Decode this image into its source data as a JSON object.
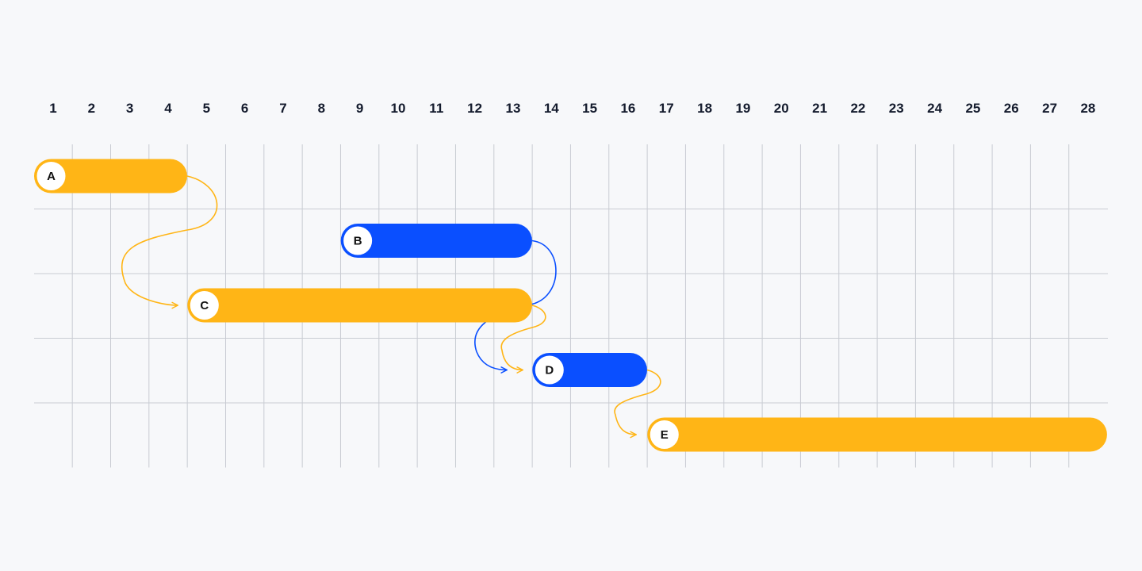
{
  "timeline": {
    "days": [
      "1",
      "2",
      "3",
      "4",
      "5",
      "6",
      "7",
      "8",
      "9",
      "10",
      "11",
      "12",
      "13",
      "14",
      "15",
      "16",
      "17",
      "18",
      "19",
      "20",
      "21",
      "22",
      "23",
      "24",
      "25",
      "26",
      "27",
      "28"
    ]
  },
  "colors": {
    "background": "#f7f8fa",
    "grid": "#c9ccd3",
    "orange": "#ffb516",
    "blue": "#0a4fff",
    "label": "#141b2d"
  },
  "tasks": [
    {
      "id": "A",
      "label": "A",
      "row": 0,
      "start_day": 1,
      "end_day": 4,
      "color": "orange"
    },
    {
      "id": "B",
      "label": "B",
      "row": 1,
      "start_day": 9,
      "end_day": 13,
      "color": "blue"
    },
    {
      "id": "C",
      "label": "C",
      "row": 2,
      "start_day": 5,
      "end_day": 13,
      "color": "orange"
    },
    {
      "id": "D",
      "label": "D",
      "row": 3,
      "start_day": 14,
      "end_day": 16,
      "color": "blue"
    },
    {
      "id": "E",
      "label": "E",
      "row": 4,
      "start_day": 17,
      "end_day": 28,
      "color": "orange"
    }
  ],
  "dependencies": [
    {
      "from": "A",
      "to": "C",
      "color": "orange"
    },
    {
      "from": "B",
      "to": "D",
      "color": "blue"
    },
    {
      "from": "C",
      "to": "D",
      "color": "orange"
    },
    {
      "from": "D",
      "to": "E",
      "color": "orange"
    }
  ]
}
